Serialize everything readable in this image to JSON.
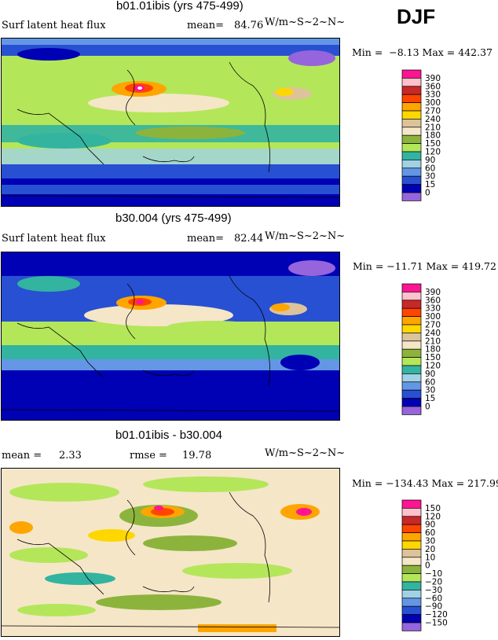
{
  "season": "DJF",
  "panels": [
    {
      "title": "b01.01ibis (yrs 475-499)",
      "left_label": "Surf latent heat flux",
      "stat_label": "mean=",
      "stat_value": "84.76",
      "units": "W/m~S~2~N~",
      "minmax": "Min =  −8.13 Max = 442.37",
      "levels": [
        "390",
        "360",
        "330",
        "300",
        "270",
        "240",
        "210",
        "180",
        "150",
        "120",
        "90",
        "60",
        "30",
        "15",
        "0"
      ],
      "colors": [
        "#ff1493",
        "#ffc0cb",
        "#c82828",
        "#ff4500",
        "#ffa500",
        "#ffd700",
        "#dcc39b",
        "#f5e6c8",
        "#8cb43c",
        "#b4e65a",
        "#32b4a0",
        "#a0d2e6",
        "#6496e6",
        "#2850d2",
        "#0000b4",
        "#9664dc"
      ]
    },
    {
      "title": "b30.004 (yrs 475-499)",
      "left_label": "Surf latent heat flux",
      "stat_label": "mean=",
      "stat_value": "82.44",
      "units": "W/m~S~2~N~",
      "minmax": "Min = −11.71 Max = 419.72",
      "levels": [
        "390",
        "360",
        "330",
        "300",
        "270",
        "240",
        "210",
        "180",
        "150",
        "120",
        "90",
        "60",
        "30",
        "15",
        "0"
      ],
      "colors": [
        "#ff1493",
        "#ffc0cb",
        "#c82828",
        "#ff4500",
        "#ffa500",
        "#ffd700",
        "#dcc39b",
        "#f5e6c8",
        "#8cb43c",
        "#b4e65a",
        "#32b4a0",
        "#a0d2e6",
        "#6496e6",
        "#2850d2",
        "#0000b4",
        "#9664dc"
      ]
    },
    {
      "title": "b01.01ibis - b30.004",
      "left_label": "mean =",
      "left_value": "2.33",
      "stat_label": "rmse =",
      "stat_value": "19.78",
      "units": "W/m~S~2~N~",
      "minmax": "Min = −134.43 Max = 217.99",
      "levels": [
        "150",
        "120",
        "90",
        "60",
        "30",
        "20",
        "10",
        "0",
        "−10",
        "−20",
        "−30",
        "−60",
        "−90",
        "−120",
        "−150"
      ],
      "colors": [
        "#ff1493",
        "#ffc0cb",
        "#c82828",
        "#ff4500",
        "#ffa500",
        "#ffd700",
        "#dcc39b",
        "#f5e6c8",
        "#8cb43c",
        "#b4e65a",
        "#32b4a0",
        "#a0d2e6",
        "#6496e6",
        "#2850d2",
        "#0000b4",
        "#9664dc"
      ]
    }
  ],
  "chart_data": [
    {
      "type": "heatmap",
      "title": "b01.01ibis (yrs 475-499)",
      "subtitle": "Surf latent heat flux",
      "mean": 84.76,
      "units": "W/m~S~2~N~",
      "min": -8.13,
      "max": 442.37,
      "contour_levels": [
        0,
        15,
        30,
        60,
        90,
        120,
        150,
        180,
        210,
        240,
        270,
        300,
        330,
        360,
        390
      ]
    },
    {
      "type": "heatmap",
      "title": "b30.004 (yrs 475-499)",
      "subtitle": "Surf latent heat flux",
      "mean": 82.44,
      "units": "W/m~S~2~N~",
      "min": -11.71,
      "max": 419.72,
      "contour_levels": [
        0,
        15,
        30,
        60,
        90,
        120,
        150,
        180,
        210,
        240,
        270,
        300,
        330,
        360,
        390
      ]
    },
    {
      "type": "heatmap",
      "title": "b01.01ibis - b30.004",
      "mean": 2.33,
      "rmse": 19.78,
      "units": "W/m~S~2~N~",
      "min": -134.43,
      "max": 217.99,
      "contour_levels": [
        -150,
        -120,
        -90,
        -60,
        -30,
        -20,
        -10,
        0,
        10,
        20,
        30,
        60,
        90,
        120,
        150
      ]
    }
  ]
}
